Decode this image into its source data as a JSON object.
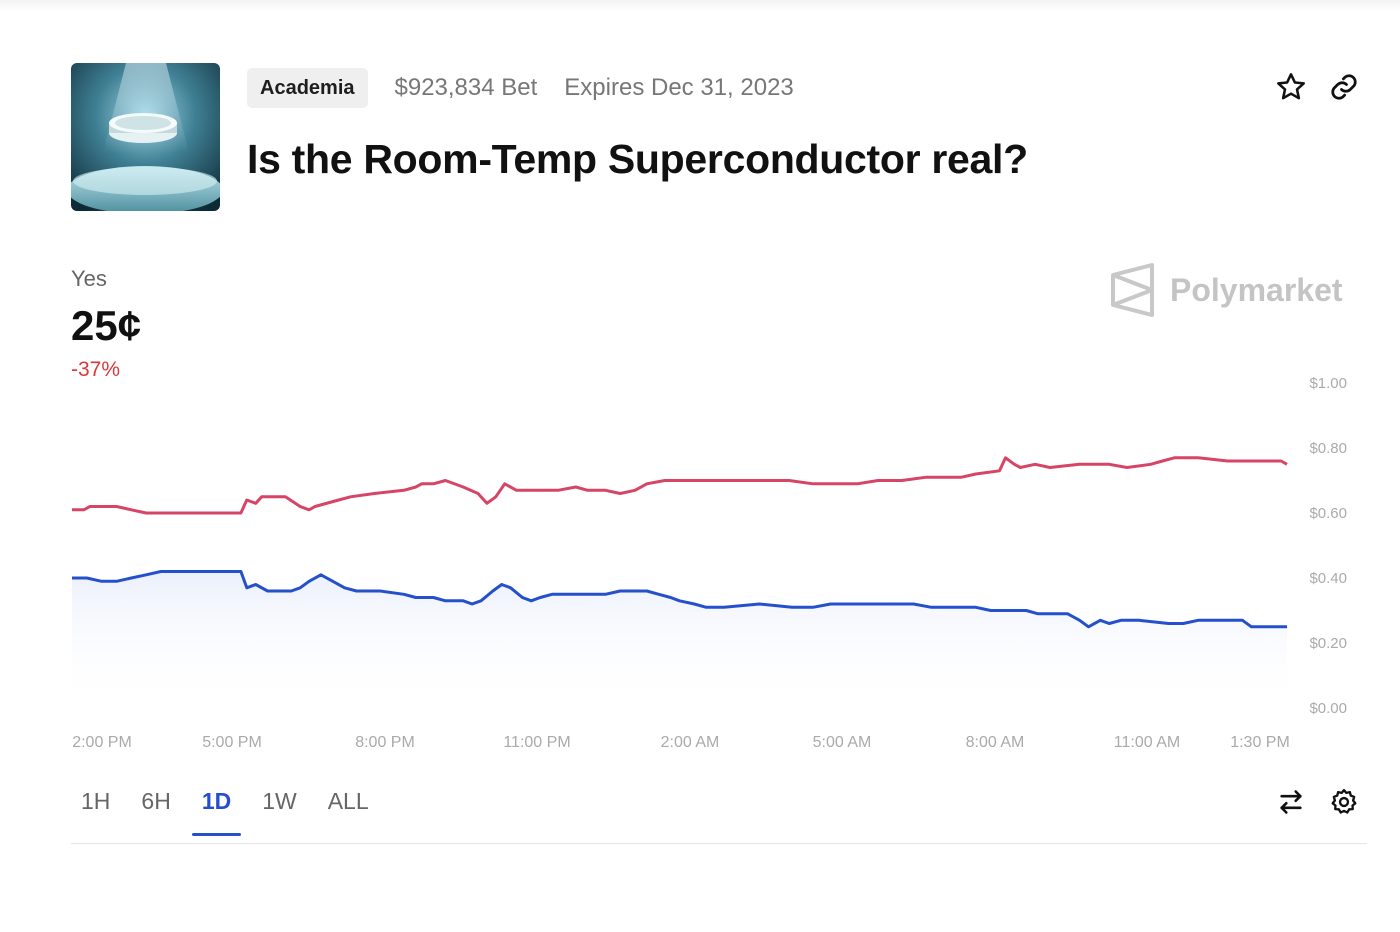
{
  "market": {
    "category": "Academia",
    "volume": "$923,834 Bet",
    "expires": "Expires Dec 31, 2023",
    "title": "Is the Room-Temp Superconductor real?"
  },
  "icons": {
    "favorite": "star-icon",
    "share": "link-icon",
    "swap": "swap-arrows-icon",
    "settings": "gear-icon",
    "brand": "polymarket-logo-icon"
  },
  "brand": "Polymarket",
  "outcome": {
    "label": "Yes",
    "price": "25¢",
    "change": "-37%"
  },
  "colors": {
    "yes_line": "#2450cc",
    "no_line": "#d64565",
    "change_down": "#d83a3a",
    "active_tab": "#2450cc"
  },
  "time_tabs": [
    {
      "label": "1H",
      "active": false
    },
    {
      "label": "6H",
      "active": false
    },
    {
      "label": "1D",
      "active": true
    },
    {
      "label": "1W",
      "active": false
    },
    {
      "label": "ALL",
      "active": false
    }
  ],
  "chart_data": {
    "type": "line",
    "x_ticks": [
      "2:00 PM",
      "5:00 PM",
      "8:00 PM",
      "11:00 PM",
      "2:00 AM",
      "5:00 AM",
      "8:00 AM",
      "11:00 AM",
      "1:30 PM"
    ],
    "y_ticks": [
      "$1.00",
      "$0.80",
      "$0.60",
      "$0.40",
      "$0.20",
      "$0.00"
    ],
    "ylim": [
      0,
      1
    ],
    "y_axis_side": "right",
    "grid": false,
    "x_range_hours": [
      0,
      23.5
    ],
    "series": [
      {
        "color": "#d64565",
        "fill": false,
        "points": [
          [
            0,
            0.61
          ],
          [
            0.4,
            0.61
          ],
          [
            0.6,
            0.62
          ],
          [
            1.5,
            0.62
          ],
          [
            2,
            0.61
          ],
          [
            2.5,
            0.6
          ],
          [
            3.6,
            0.6
          ],
          [
            3.8,
            0.6
          ],
          [
            4.5,
            0.6
          ],
          [
            5.7,
            0.6
          ],
          [
            5.9,
            0.64
          ],
          [
            6.2,
            0.63
          ],
          [
            6.4,
            0.65
          ],
          [
            7.2,
            0.65
          ],
          [
            7.7,
            0.62
          ],
          [
            8,
            0.61
          ],
          [
            8.2,
            0.62
          ],
          [
            9,
            0.64
          ],
          [
            9.4,
            0.65
          ],
          [
            10.2,
            0.66
          ],
          [
            11.2,
            0.67
          ],
          [
            11.6,
            0.68
          ],
          [
            11.8,
            0.69
          ],
          [
            12.2,
            0.69
          ],
          [
            12.6,
            0.7
          ],
          [
            13.2,
            0.68
          ],
          [
            13.7,
            0.66
          ],
          [
            14,
            0.63
          ],
          [
            14.3,
            0.65
          ],
          [
            14.6,
            0.69
          ],
          [
            15,
            0.67
          ],
          [
            15.6,
            0.67
          ],
          [
            16.4,
            0.67
          ],
          [
            17,
            0.68
          ],
          [
            17.4,
            0.67
          ],
          [
            18,
            0.67
          ],
          [
            18.5,
            0.66
          ],
          [
            19,
            0.67
          ],
          [
            19.4,
            0.69
          ],
          [
            20,
            0.7
          ],
          [
            21,
            0.7
          ],
          [
            21.4,
            0.7
          ],
          [
            22,
            0.7
          ],
          [
            23,
            0.7
          ],
          [
            24.2,
            0.7
          ],
          [
            25,
            0.69
          ],
          [
            26,
            0.69
          ],
          [
            26.5,
            0.69
          ],
          [
            27.2,
            0.7
          ],
          [
            28,
            0.7
          ],
          [
            28.8,
            0.71
          ],
          [
            30,
            0.71
          ],
          [
            30.5,
            0.72
          ],
          [
            31.3,
            0.73
          ],
          [
            31.5,
            0.77
          ],
          [
            31.8,
            0.75
          ],
          [
            32,
            0.74
          ],
          [
            32.5,
            0.75
          ],
          [
            33,
            0.74
          ],
          [
            34,
            0.75
          ],
          [
            35,
            0.75
          ],
          [
            35.6,
            0.74
          ],
          [
            36.4,
            0.75
          ],
          [
            36.8,
            0.76
          ],
          [
            37.2,
            0.77
          ],
          [
            38,
            0.77
          ],
          [
            39,
            0.76
          ],
          [
            40,
            0.76
          ],
          [
            40.8,
            0.76
          ],
          [
            41,
            0.75
          ]
        ]
      },
      {
        "color": "#2450cc",
        "fill": true,
        "points": [
          [
            0,
            0.4
          ],
          [
            0.5,
            0.4
          ],
          [
            1,
            0.39
          ],
          [
            1.5,
            0.39
          ],
          [
            2,
            0.4
          ],
          [
            2.5,
            0.41
          ],
          [
            3,
            0.42
          ],
          [
            3.5,
            0.42
          ],
          [
            5.7,
            0.42
          ],
          [
            5.9,
            0.37
          ],
          [
            6.2,
            0.38
          ],
          [
            6.6,
            0.36
          ],
          [
            7.4,
            0.36
          ],
          [
            7.7,
            0.37
          ],
          [
            8,
            0.39
          ],
          [
            8.4,
            0.41
          ],
          [
            8.8,
            0.39
          ],
          [
            9.2,
            0.37
          ],
          [
            9.6,
            0.36
          ],
          [
            10.4,
            0.36
          ],
          [
            11.2,
            0.35
          ],
          [
            11.6,
            0.34
          ],
          [
            12.2,
            0.34
          ],
          [
            12.6,
            0.33
          ],
          [
            13.2,
            0.33
          ],
          [
            13.5,
            0.32
          ],
          [
            13.8,
            0.33
          ],
          [
            14.2,
            0.36
          ],
          [
            14.5,
            0.38
          ],
          [
            14.8,
            0.37
          ],
          [
            15.2,
            0.34
          ],
          [
            15.5,
            0.33
          ],
          [
            15.8,
            0.34
          ],
          [
            16.2,
            0.35
          ],
          [
            17.5,
            0.35
          ],
          [
            18,
            0.35
          ],
          [
            18.5,
            0.36
          ],
          [
            19.4,
            0.36
          ],
          [
            19.8,
            0.35
          ],
          [
            20.2,
            0.34
          ],
          [
            20.5,
            0.33
          ],
          [
            21,
            0.32
          ],
          [
            21.4,
            0.31
          ],
          [
            22,
            0.31
          ],
          [
            23.2,
            0.32
          ],
          [
            24.3,
            0.31
          ],
          [
            25,
            0.31
          ],
          [
            25.6,
            0.32
          ],
          [
            27,
            0.32
          ],
          [
            28.4,
            0.32
          ],
          [
            29,
            0.31
          ],
          [
            30,
            0.31
          ],
          [
            30.5,
            0.31
          ],
          [
            31,
            0.3
          ],
          [
            32.2,
            0.3
          ],
          [
            32.6,
            0.29
          ],
          [
            33.6,
            0.29
          ],
          [
            34,
            0.27
          ],
          [
            34.3,
            0.25
          ],
          [
            34.7,
            0.27
          ],
          [
            35,
            0.26
          ],
          [
            35.4,
            0.27
          ],
          [
            36,
            0.27
          ],
          [
            37,
            0.26
          ],
          [
            37.5,
            0.26
          ],
          [
            38,
            0.27
          ],
          [
            39,
            0.27
          ],
          [
            39.5,
            0.27
          ],
          [
            39.8,
            0.25
          ],
          [
            41,
            0.25
          ]
        ]
      }
    ]
  }
}
